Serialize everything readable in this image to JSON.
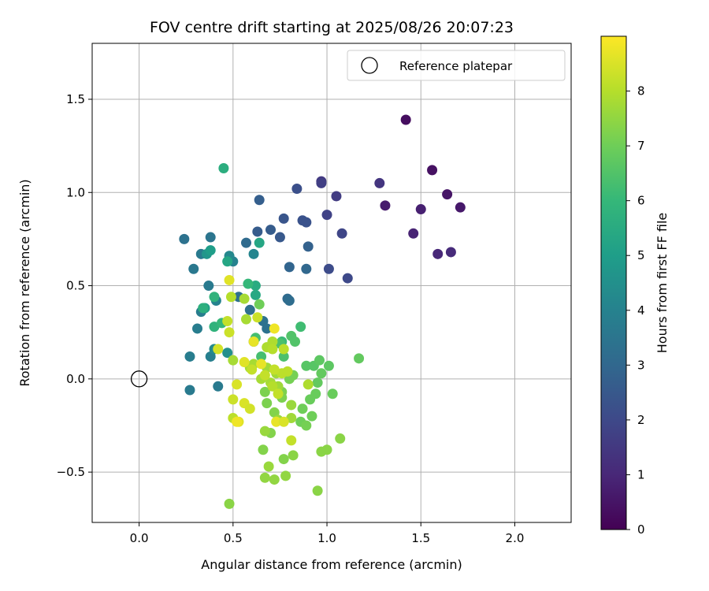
{
  "chart_data": {
    "type": "scatter",
    "title": "FOV centre drift starting at 2025/08/26 20:07:23",
    "xlabel": "Angular distance from reference (arcmin)",
    "ylabel": "Rotation from reference (arcmin)",
    "xlim": [
      -0.25,
      2.3
    ],
    "ylim": [
      -0.77,
      1.8
    ],
    "xticks": [
      0.0,
      0.5,
      1.0,
      1.5,
      2.0
    ],
    "xtick_labels": [
      "0.0",
      "0.5",
      "1.0",
      "1.5",
      "2.0"
    ],
    "yticks": [
      -0.5,
      0.0,
      0.5,
      1.0,
      1.5
    ],
    "ytick_labels": [
      "−0.5",
      "0.0",
      "0.5",
      "1.0",
      "1.5"
    ],
    "grid": true,
    "legend": {
      "placement": "top-right",
      "entries": [
        "Reference platepar"
      ]
    },
    "reference_point": {
      "x": 0.0,
      "y": 0.0,
      "label": "Reference platepar"
    },
    "colorbar": {
      "label": "Hours from first FF file",
      "range": [
        0,
        9
      ],
      "ticks": [
        0,
        1,
        2,
        3,
        4,
        5,
        6,
        7,
        8
      ],
      "tick_labels": [
        "0",
        "1",
        "2",
        "3",
        "4",
        "5",
        "6",
        "7",
        "8"
      ],
      "colormap": "viridis"
    },
    "colormap_stops": [
      "#440154",
      "#482878",
      "#3e4989",
      "#31688e",
      "#26828e",
      "#1f9e89",
      "#35b779",
      "#6ece58",
      "#b5de2b",
      "#fde725"
    ],
    "points": [
      {
        "x": 1.42,
        "y": 1.39,
        "h": 0.3
      },
      {
        "x": 1.56,
        "y": 1.12,
        "h": 0.4
      },
      {
        "x": 1.64,
        "y": 0.99,
        "h": 0.5
      },
      {
        "x": 1.71,
        "y": 0.92,
        "h": 0.6
      },
      {
        "x": 1.31,
        "y": 0.93,
        "h": 0.7
      },
      {
        "x": 1.5,
        "y": 0.91,
        "h": 0.8
      },
      {
        "x": 1.46,
        "y": 0.78,
        "h": 0.9
      },
      {
        "x": 1.59,
        "y": 0.67,
        "h": 1.0
      },
      {
        "x": 1.66,
        "y": 0.68,
        "h": 1.1
      },
      {
        "x": 1.28,
        "y": 1.05,
        "h": 1.4
      },
      {
        "x": 0.97,
        "y": 1.06,
        "h": 1.5
      },
      {
        "x": 1.05,
        "y": 0.98,
        "h": 1.6
      },
      {
        "x": 0.97,
        "y": 1.05,
        "h": 1.7
      },
      {
        "x": 1.0,
        "y": 0.88,
        "h": 1.8
      },
      {
        "x": 1.08,
        "y": 0.78,
        "h": 1.9
      },
      {
        "x": 1.11,
        "y": 0.54,
        "h": 2.0
      },
      {
        "x": 1.01,
        "y": 0.59,
        "h": 2.1
      },
      {
        "x": 0.84,
        "y": 1.02,
        "h": 2.2
      },
      {
        "x": 0.87,
        "y": 0.85,
        "h": 2.3
      },
      {
        "x": 0.89,
        "y": 0.84,
        "h": 2.3
      },
      {
        "x": 0.77,
        "y": 0.86,
        "h": 2.4
      },
      {
        "x": 0.75,
        "y": 0.76,
        "h": 2.5
      },
      {
        "x": 0.7,
        "y": 0.8,
        "h": 2.6
      },
      {
        "x": 0.63,
        "y": 0.79,
        "h": 2.6
      },
      {
        "x": 0.64,
        "y": 0.96,
        "h": 2.7
      },
      {
        "x": 0.9,
        "y": 0.71,
        "h": 2.8
      },
      {
        "x": 0.8,
        "y": 0.6,
        "h": 2.9
      },
      {
        "x": 0.89,
        "y": 0.59,
        "h": 3.0
      },
      {
        "x": 0.57,
        "y": 0.73,
        "h": 3.1
      },
      {
        "x": 0.79,
        "y": 0.43,
        "h": 3.1
      },
      {
        "x": 0.8,
        "y": 0.42,
        "h": 3.2
      },
      {
        "x": 0.59,
        "y": 0.37,
        "h": 3.3
      },
      {
        "x": 0.53,
        "y": 0.44,
        "h": 3.3
      },
      {
        "x": 0.66,
        "y": 0.31,
        "h": 3.4
      },
      {
        "x": 0.68,
        "y": 0.27,
        "h": 3.4
      },
      {
        "x": 0.61,
        "y": 0.2,
        "h": 3.5
      },
      {
        "x": 0.24,
        "y": 0.75,
        "h": 3.4
      },
      {
        "x": 0.38,
        "y": 0.76,
        "h": 3.5
      },
      {
        "x": 0.29,
        "y": 0.59,
        "h": 3.6
      },
      {
        "x": 0.33,
        "y": 0.67,
        "h": 3.7
      },
      {
        "x": 0.37,
        "y": 0.5,
        "h": 3.7
      },
      {
        "x": 0.33,
        "y": 0.36,
        "h": 3.8
      },
      {
        "x": 0.31,
        "y": 0.27,
        "h": 3.8
      },
      {
        "x": 0.27,
        "y": 0.12,
        "h": 3.8
      },
      {
        "x": 0.27,
        "y": -0.06,
        "h": 3.7
      },
      {
        "x": 0.42,
        "y": -0.04,
        "h": 3.7
      },
      {
        "x": 0.38,
        "y": 0.12,
        "h": 3.9
      },
      {
        "x": 0.41,
        "y": 0.42,
        "h": 4.0
      },
      {
        "x": 0.5,
        "y": 0.63,
        "h": 4.0
      },
      {
        "x": 0.61,
        "y": 0.67,
        "h": 4.1
      },
      {
        "x": 0.48,
        "y": 0.66,
        "h": 4.2
      },
      {
        "x": 0.4,
        "y": 0.16,
        "h": 4.3
      },
      {
        "x": 0.47,
        "y": 0.14,
        "h": 4.5
      },
      {
        "x": 0.36,
        "y": 0.67,
        "h": 4.7
      },
      {
        "x": 0.38,
        "y": 0.69,
        "h": 5.0
      },
      {
        "x": 0.35,
        "y": 0.38,
        "h": 5.1
      },
      {
        "x": 0.64,
        "y": 0.73,
        "h": 5.3
      },
      {
        "x": 0.47,
        "y": 0.63,
        "h": 5.3
      },
      {
        "x": 0.62,
        "y": 0.45,
        "h": 5.4
      },
      {
        "x": 0.62,
        "y": 0.5,
        "h": 5.5
      },
      {
        "x": 0.45,
        "y": 1.13,
        "h": 5.6
      },
      {
        "x": 0.34,
        "y": 0.38,
        "h": 5.7
      },
      {
        "x": 0.4,
        "y": 0.44,
        "h": 5.8
      },
      {
        "x": 0.4,
        "y": 0.28,
        "h": 5.8
      },
      {
        "x": 0.44,
        "y": 0.3,
        "h": 6.0
      },
      {
        "x": 0.58,
        "y": 0.51,
        "h": 6.0
      },
      {
        "x": 0.76,
        "y": 0.2,
        "h": 6.1
      },
      {
        "x": 0.86,
        "y": 0.28,
        "h": 6.2
      },
      {
        "x": 0.62,
        "y": 0.22,
        "h": 6.3
      },
      {
        "x": 0.65,
        "y": 0.12,
        "h": 6.3
      },
      {
        "x": 0.75,
        "y": 0.19,
        "h": 6.4
      },
      {
        "x": 0.77,
        "y": 0.12,
        "h": 6.4
      },
      {
        "x": 0.81,
        "y": 0.23,
        "h": 6.5
      },
      {
        "x": 0.83,
        "y": 0.2,
        "h": 6.5
      },
      {
        "x": 0.89,
        "y": 0.07,
        "h": 6.6
      },
      {
        "x": 0.93,
        "y": 0.07,
        "h": 6.6
      },
      {
        "x": 0.96,
        "y": 0.1,
        "h": 6.7
      },
      {
        "x": 1.01,
        "y": 0.07,
        "h": 6.7
      },
      {
        "x": 1.17,
        "y": 0.11,
        "h": 6.8
      },
      {
        "x": 0.97,
        "y": 0.03,
        "h": 6.8
      },
      {
        "x": 0.95,
        "y": -0.02,
        "h": 6.8
      },
      {
        "x": 0.94,
        "y": -0.08,
        "h": 6.9
      },
      {
        "x": 0.91,
        "y": -0.11,
        "h": 6.9
      },
      {
        "x": 1.03,
        "y": -0.08,
        "h": 6.9
      },
      {
        "x": 0.87,
        "y": -0.16,
        "h": 7.0
      },
      {
        "x": 0.92,
        "y": -0.2,
        "h": 7.0
      },
      {
        "x": 0.86,
        "y": -0.23,
        "h": 7.0
      },
      {
        "x": 0.89,
        "y": -0.25,
        "h": 7.1
      },
      {
        "x": 0.8,
        "y": 0.0,
        "h": 7.1
      },
      {
        "x": 0.82,
        "y": 0.02,
        "h": 7.1
      },
      {
        "x": 0.76,
        "y": -0.07,
        "h": 7.2
      },
      {
        "x": 0.76,
        "y": -0.1,
        "h": 7.2
      },
      {
        "x": 0.67,
        "y": -0.07,
        "h": 7.2
      },
      {
        "x": 0.68,
        "y": -0.13,
        "h": 7.2
      },
      {
        "x": 0.72,
        "y": -0.18,
        "h": 7.3
      },
      {
        "x": 0.7,
        "y": -0.29,
        "h": 7.3
      },
      {
        "x": 0.66,
        "y": -0.38,
        "h": 7.3
      },
      {
        "x": 0.77,
        "y": -0.43,
        "h": 7.3
      },
      {
        "x": 0.82,
        "y": -0.41,
        "h": 7.4
      },
      {
        "x": 0.97,
        "y": -0.39,
        "h": 7.4
      },
      {
        "x": 1.0,
        "y": -0.38,
        "h": 7.4
      },
      {
        "x": 1.07,
        "y": -0.32,
        "h": 7.4
      },
      {
        "x": 0.95,
        "y": -0.6,
        "h": 7.4
      },
      {
        "x": 0.48,
        "y": -0.67,
        "h": 7.4
      },
      {
        "x": 0.67,
        "y": -0.53,
        "h": 7.5
      },
      {
        "x": 0.72,
        "y": -0.54,
        "h": 7.5
      },
      {
        "x": 0.78,
        "y": -0.52,
        "h": 7.5
      },
      {
        "x": 0.69,
        "y": -0.47,
        "h": 7.6
      },
      {
        "x": 0.67,
        "y": -0.28,
        "h": 7.6
      },
      {
        "x": 0.74,
        "y": -0.22,
        "h": 7.6
      },
      {
        "x": 0.81,
        "y": -0.21,
        "h": 7.7
      },
      {
        "x": 0.81,
        "y": -0.14,
        "h": 7.6
      },
      {
        "x": 0.74,
        "y": -0.04,
        "h": 7.7
      },
      {
        "x": 0.73,
        "y": 0.03,
        "h": 7.7
      },
      {
        "x": 0.68,
        "y": 0.06,
        "h": 7.7
      },
      {
        "x": 0.61,
        "y": 0.08,
        "h": 7.8
      },
      {
        "x": 0.59,
        "y": 0.06,
        "h": 7.8
      },
      {
        "x": 0.65,
        "y": 0.0,
        "h": 7.8
      },
      {
        "x": 0.7,
        "y": -0.02,
        "h": 7.8
      },
      {
        "x": 0.64,
        "y": 0.4,
        "h": 7.0
      },
      {
        "x": 0.56,
        "y": 0.43,
        "h": 7.8
      },
      {
        "x": 0.49,
        "y": 0.44,
        "h": 8.0
      },
      {
        "x": 0.57,
        "y": 0.32,
        "h": 7.8
      },
      {
        "x": 0.68,
        "y": 0.17,
        "h": 7.9
      },
      {
        "x": 0.71,
        "y": 0.2,
        "h": 7.9
      },
      {
        "x": 0.71,
        "y": 0.16,
        "h": 8.0
      },
      {
        "x": 0.77,
        "y": 0.16,
        "h": 8.1
      },
      {
        "x": 0.76,
        "y": 0.03,
        "h": 8.1
      },
      {
        "x": 0.79,
        "y": 0.04,
        "h": 8.1
      },
      {
        "x": 0.67,
        "y": 0.02,
        "h": 8.2
      },
      {
        "x": 0.72,
        "y": 0.05,
        "h": 8.2
      },
      {
        "x": 0.6,
        "y": 0.05,
        "h": 8.2
      },
      {
        "x": 0.5,
        "y": 0.1,
        "h": 7.8
      },
      {
        "x": 0.47,
        "y": 0.31,
        "h": 8.2
      },
      {
        "x": 0.48,
        "y": 0.25,
        "h": 8.3
      },
      {
        "x": 0.63,
        "y": 0.33,
        "h": 8.3
      },
      {
        "x": 0.42,
        "y": 0.16,
        "h": 8.4
      },
      {
        "x": 0.48,
        "y": 0.53,
        "h": 8.6
      },
      {
        "x": 0.72,
        "y": 0.27,
        "h": 8.8
      },
      {
        "x": 0.61,
        "y": 0.2,
        "h": 8.7
      },
      {
        "x": 0.56,
        "y": 0.09,
        "h": 8.6
      },
      {
        "x": 0.65,
        "y": 0.08,
        "h": 8.7
      },
      {
        "x": 0.52,
        "y": -0.03,
        "h": 8.5
      },
      {
        "x": 0.5,
        "y": -0.11,
        "h": 8.3
      },
      {
        "x": 0.5,
        "y": -0.21,
        "h": 8.1
      },
      {
        "x": 0.53,
        "y": -0.23,
        "h": 8.6
      },
      {
        "x": 0.56,
        "y": -0.13,
        "h": 8.5
      },
      {
        "x": 0.59,
        "y": -0.16,
        "h": 8.4
      },
      {
        "x": 0.52,
        "y": -0.23,
        "h": 8.8
      },
      {
        "x": 0.73,
        "y": -0.23,
        "h": 8.7
      },
      {
        "x": 0.77,
        "y": -0.23,
        "h": 8.5
      },
      {
        "x": 0.81,
        "y": -0.33,
        "h": 8.2
      },
      {
        "x": 0.71,
        "y": -0.04,
        "h": 8.0
      },
      {
        "x": 0.9,
        "y": -0.03,
        "h": 7.9
      },
      {
        "x": 0.74,
        "y": -0.08,
        "h": 8.2
      }
    ]
  }
}
